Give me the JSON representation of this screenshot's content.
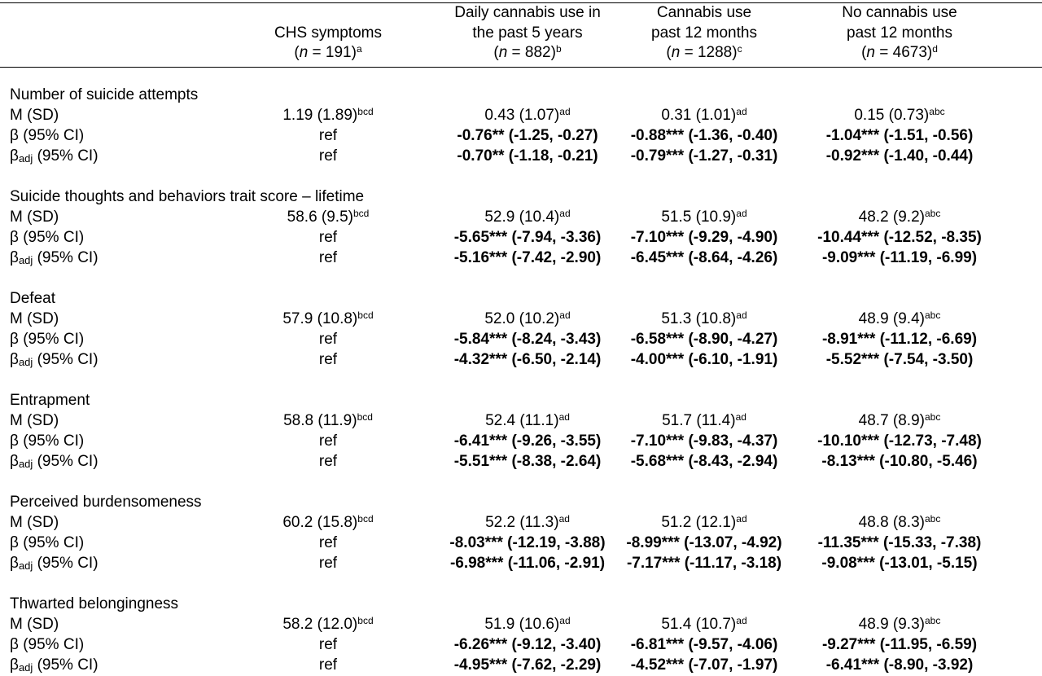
{
  "header": {
    "columns": [
      {
        "line1": "",
        "line2": "CHS symptoms",
        "n_prefix": "(",
        "n_label": "n",
        "n_value": " = 191)",
        "sup": "a"
      },
      {
        "line1": "Daily cannabis use in",
        "line2": "the past 5 years",
        "n_prefix": "(",
        "n_label": "n",
        "n_value": " = 882)",
        "sup": "b"
      },
      {
        "line1": "Cannabis use",
        "line2": "past 12 months",
        "n_prefix": "(",
        "n_label": "n",
        "n_value": " = 1288)",
        "sup": "c"
      },
      {
        "line1": "No cannabis use",
        "line2": "past 12 months",
        "n_prefix": "(",
        "n_label": "n",
        "n_value": " = 4673)",
        "sup": "d"
      }
    ]
  },
  "row_labels": {
    "msd": "M (SD)",
    "beta": "β (95% CI)",
    "badj_pre": "β",
    "badj_sub": "adj",
    "badj_post": " (95% CI)"
  },
  "sections": [
    {
      "title": "Number of suicide attempts",
      "msd": [
        [
          "1.19 (1.89)",
          "bcd"
        ],
        [
          "0.43 (1.07)",
          "ad"
        ],
        [
          "0.31 (1.01)",
          "ad"
        ],
        [
          "0.15 (0.73)",
          "abc"
        ]
      ],
      "beta": [
        "ref",
        "-0.76** (-1.25, -0.27)",
        "-0.88*** (-1.36, -0.40)",
        "-1.04*** (-1.51, -0.56)"
      ],
      "badj": [
        "ref",
        "-0.70** (-1.18, -0.21)",
        "-0.79*** (-1.27, -0.31)",
        "-0.92*** (-1.40, -0.44)"
      ]
    },
    {
      "title": "Suicide thoughts and behaviors trait score – lifetime",
      "msd": [
        [
          "58.6 (9.5)",
          "bcd"
        ],
        [
          "52.9 (10.4)",
          "ad"
        ],
        [
          "51.5 (10.9)",
          "ad"
        ],
        [
          "48.2 (9.2)",
          "abc"
        ]
      ],
      "beta": [
        "ref",
        "-5.65*** (-7.94, -3.36)",
        "-7.10*** (-9.29, -4.90)",
        "-10.44*** (-12.52, -8.35)"
      ],
      "badj": [
        "ref",
        "-5.16*** (-7.42, -2.90)",
        "-6.45*** (-8.64, -4.26)",
        "-9.09*** (-11.19, -6.99)"
      ]
    },
    {
      "title": "Defeat",
      "msd": [
        [
          "57.9 (10.8)",
          "bcd"
        ],
        [
          "52.0 (10.2)",
          "ad"
        ],
        [
          "51.3 (10.8)",
          "ad"
        ],
        [
          "48.9 (9.4)",
          "abc"
        ]
      ],
      "beta": [
        "ref",
        "-5.84*** (-8.24, -3.43)",
        "-6.58*** (-8.90, -4.27)",
        "-8.91*** (-11.12, -6.69)"
      ],
      "badj": [
        "ref",
        "-4.32*** (-6.50, -2.14)",
        "-4.00*** (-6.10, -1.91)",
        "-5.52*** (-7.54, -3.50)"
      ]
    },
    {
      "title": "Entrapment",
      "msd": [
        [
          "58.8 (11.9)",
          "bcd"
        ],
        [
          "52.4 (11.1)",
          "ad"
        ],
        [
          "51.7 (11.4)",
          "ad"
        ],
        [
          "48.7 (8.9)",
          "abc"
        ]
      ],
      "beta": [
        "ref",
        "-6.41*** (-9.26, -3.55)",
        "-7.10*** (-9.83, -4.37)",
        "-10.10*** (-12.73, -7.48)"
      ],
      "badj": [
        "ref",
        "-5.51*** (-8.38, -2.64)",
        "-5.68*** (-8.43, -2.94)",
        "-8.13*** (-10.80, -5.46)"
      ]
    },
    {
      "title": "Perceived burdensomeness",
      "msd": [
        [
          "60.2 (15.8)",
          "bcd"
        ],
        [
          "52.2 (11.3)",
          "ad"
        ],
        [
          "51.2 (12.1)",
          "ad"
        ],
        [
          "48.8 (8.3)",
          "abc"
        ]
      ],
      "beta": [
        "ref",
        "-8.03*** (-12.19, -3.88)",
        "-8.99*** (-13.07, -4.92)",
        "-11.35*** (-15.33, -7.38)"
      ],
      "badj": [
        "ref",
        "-6.98*** (-11.06, -2.91)",
        "-7.17*** (-11.17, -3.18)",
        "-9.08*** (-13.01, -5.15)"
      ]
    },
    {
      "title": "Thwarted belongingness",
      "msd": [
        [
          "58.2 (12.0)",
          "bcd"
        ],
        [
          "51.9 (10.6)",
          "ad"
        ],
        [
          "51.4 (10.7)",
          "ad"
        ],
        [
          "48.9 (9.3)",
          "abc"
        ]
      ],
      "beta": [
        "ref",
        "-6.26*** (-9.12, -3.40)",
        "-6.81*** (-9.57, -4.06)",
        "-9.27*** (-11.95, -6.59)"
      ],
      "badj": [
        "ref",
        "-4.95*** (-7.62, -2.29)",
        "-4.52*** (-7.07, -1.97)",
        "-6.41*** (-8.90, -3.92)"
      ]
    }
  ]
}
